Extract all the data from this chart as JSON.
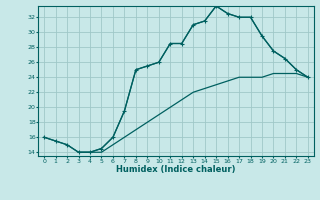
{
  "xlabel": "Humidex (Indice chaleur)",
  "bg_color": "#c8e8e8",
  "grid_color": "#a0c8c8",
  "line_color": "#006060",
  "xlim": [
    -0.5,
    23.5
  ],
  "ylim": [
    13.5,
    33.5
  ],
  "yticks": [
    14,
    16,
    18,
    20,
    22,
    24,
    26,
    28,
    30,
    32
  ],
  "xticks": [
    0,
    1,
    2,
    3,
    4,
    5,
    6,
    7,
    8,
    9,
    10,
    11,
    12,
    13,
    14,
    15,
    16,
    17,
    18,
    19,
    20,
    21,
    22,
    23
  ],
  "line1_x": [
    0,
    1,
    2,
    3,
    4,
    5,
    6,
    7,
    8,
    9,
    10,
    11,
    12,
    13,
    14,
    15,
    16,
    17,
    18,
    19,
    20,
    21,
    22,
    23
  ],
  "line1_y": [
    16,
    15.5,
    15,
    14,
    14,
    14.5,
    16,
    19.5,
    25,
    25.5,
    26,
    28.5,
    28.5,
    31,
    31.5,
    33.5,
    32.5,
    32,
    32,
    29.5,
    27.5,
    26.5,
    25,
    24
  ],
  "line2_x": [
    0,
    1,
    2,
    3,
    4,
    5,
    6,
    7,
    8,
    9,
    10,
    11,
    12,
    13,
    14,
    15,
    16,
    17,
    18,
    19,
    20,
    21,
    22,
    23
  ],
  "line2_y": [
    16,
    15.5,
    15,
    14,
    14,
    14,
    15,
    16,
    17,
    18,
    19,
    20,
    21,
    22,
    22.5,
    23,
    23.5,
    24,
    24,
    24,
    24.5,
    24.5,
    24.5,
    24
  ],
  "line3_x": [
    3,
    4,
    5,
    6,
    7,
    8,
    9,
    10,
    11,
    12,
    13,
    14,
    15,
    16,
    17,
    18,
    19,
    20,
    21,
    22,
    23
  ],
  "line3_y": [
    14,
    14,
    14.5,
    16,
    19.5,
    25,
    25.5,
    26,
    28.5,
    28.5,
    31,
    31.5,
    33.5,
    32.5,
    32,
    32,
    29.5,
    27.5,
    26.5,
    25,
    24
  ]
}
